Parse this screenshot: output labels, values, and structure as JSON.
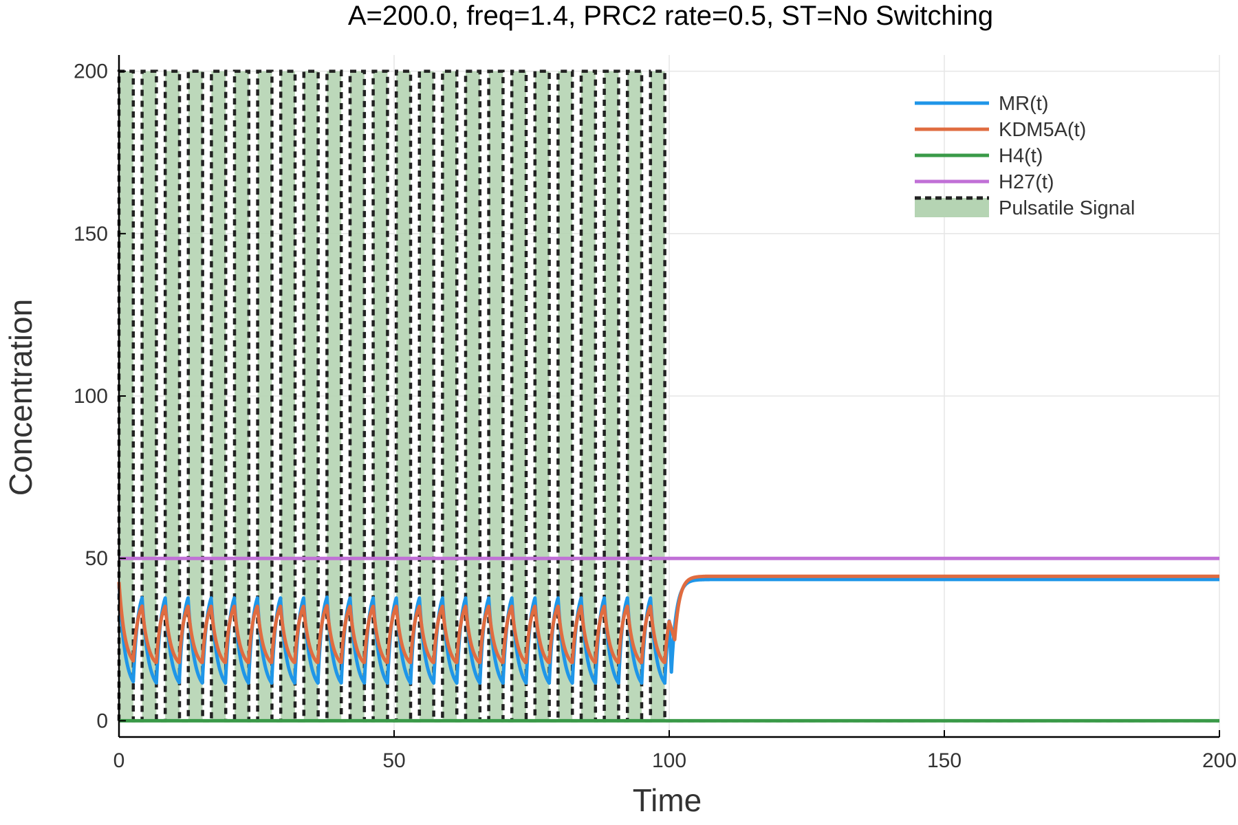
{
  "chart_data": {
    "type": "line",
    "title": "A=200.0, freq=1.4, PRC2 rate=0.5,  ST=No Switching",
    "xlabel": "Time",
    "ylabel": "Concentration",
    "xlim": [
      0,
      200
    ],
    "ylim": [
      -5,
      205
    ],
    "xticks": [
      0,
      50,
      100,
      150,
      200
    ],
    "xtick_labels": [
      "0",
      "50",
      "100",
      "150",
      "200"
    ],
    "yticks": [
      0,
      50,
      100,
      150,
      200
    ],
    "ytick_labels": [
      "0",
      "50",
      "100",
      "150",
      "200"
    ],
    "grid": true,
    "legend_position": "top-right",
    "pulse": {
      "amplitude": 200,
      "on_until": 100,
      "period": 4.2,
      "pulse_width": 2.6,
      "baseline": 0
    },
    "series": [
      {
        "name": "MR(t)",
        "color": "#1f96e8",
        "initial": 44,
        "oscillation_during_pulse": {
          "min": 11,
          "max": 40,
          "period": 4.2
        },
        "dip_at_switch_off": {
          "x": 100.4,
          "y": 15
        },
        "steady_state_after": 43.5
      },
      {
        "name": "KDM5A(t)",
        "color": "#e06c40",
        "initial": 44,
        "oscillation_during_pulse": {
          "min": 18,
          "max": 36,
          "period": 4.2
        },
        "dip_at_switch_off": {
          "x": 101,
          "y": 25
        },
        "steady_state_after": 44.5
      },
      {
        "name": "H4(t)",
        "color": "#3a9a48",
        "constant": 0
      },
      {
        "name": "H27(t)",
        "color": "#c070d6",
        "constant": 50
      },
      {
        "name": "Pulsatile Signal",
        "color": "#222222",
        "style": "dashed",
        "fill_color": "#b5d4b3"
      }
    ]
  }
}
